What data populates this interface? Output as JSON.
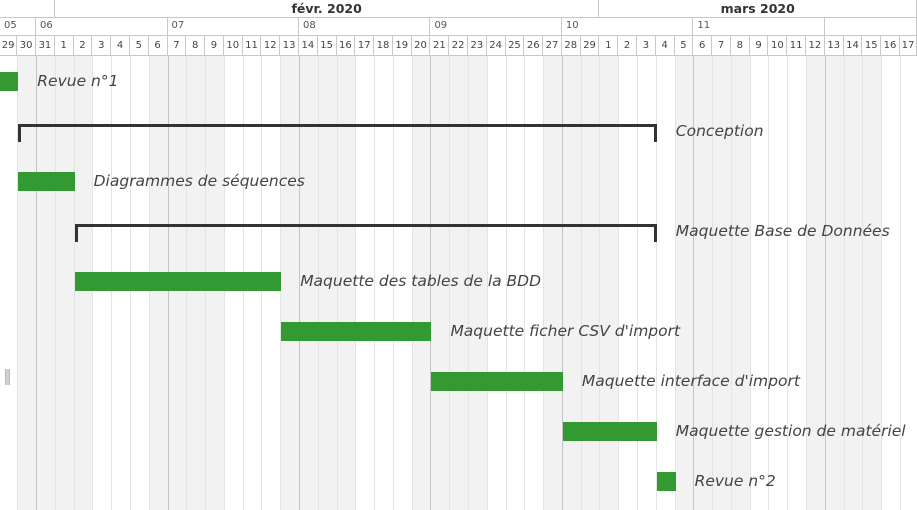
{
  "months": [
    {
      "label": "",
      "from": 0,
      "to": 2
    },
    {
      "label": "févr. 2020",
      "from": 3,
      "to": 31
    },
    {
      "label": "mars 2020",
      "from": 32,
      "to": 48
    }
  ],
  "weeks": [
    {
      "label": "05",
      "from": 0,
      "to": 1
    },
    {
      "label": "06",
      "from": 2,
      "to": 8
    },
    {
      "label": "07",
      "from": 9,
      "to": 15
    },
    {
      "label": "08",
      "from": 16,
      "to": 22
    },
    {
      "label": "09",
      "from": 23,
      "to": 29
    },
    {
      "label": "10",
      "from": 30,
      "to": 36
    },
    {
      "label": "11",
      "from": 37,
      "to": 43
    },
    {
      "label": "",
      "from": 44,
      "to": 48
    }
  ],
  "days": [
    "29",
    "30",
    "31",
    "1",
    "2",
    "3",
    "4",
    "5",
    "6",
    "7",
    "8",
    "9",
    "10",
    "11",
    "12",
    "13",
    "14",
    "15",
    "16",
    "17",
    "18",
    "19",
    "20",
    "21",
    "22",
    "23",
    "24",
    "25",
    "26",
    "27",
    "28",
    "29",
    "1",
    "2",
    "3",
    "4",
    "5",
    "6",
    "7",
    "8",
    "9",
    "10",
    "11",
    "12",
    "13",
    "14",
    "15",
    "16",
    "17"
  ],
  "weekend_days": [
    1,
    2,
    3,
    4,
    8,
    9,
    10,
    11,
    15,
    16,
    17,
    18,
    22,
    23,
    24,
    25,
    29,
    30,
    31,
    32,
    36,
    37,
    38,
    39,
    43,
    44,
    45,
    46
  ],
  "tasks": [
    {
      "name": "Revue n°1",
      "type": "milestone",
      "start": 0,
      "end": 1
    },
    {
      "name": "Conception",
      "type": "summary",
      "start": 1,
      "end": 35
    },
    {
      "name": "Diagrammes de séquences",
      "type": "task",
      "start": 1,
      "end": 4
    },
    {
      "name": "Maquette Base de Données",
      "type": "summary",
      "start": 4,
      "end": 35
    },
    {
      "name": "Maquette des tables de la BDD",
      "type": "task",
      "start": 4,
      "end": 15
    },
    {
      "name": "Maquette ficher CSV d'import",
      "type": "task",
      "start": 15,
      "end": 23
    },
    {
      "name": "Maquette interface d'import",
      "type": "task",
      "start": 23,
      "end": 30
    },
    {
      "name": "Maquette gestion de matériel",
      "type": "task",
      "start": 30,
      "end": 35
    },
    {
      "name": "Revue n°2",
      "type": "milestone",
      "start": 35,
      "end": 36
    }
  ],
  "colors": {
    "task": "#339933",
    "summary": "#333333",
    "weekend": "#f2f2f2"
  }
}
